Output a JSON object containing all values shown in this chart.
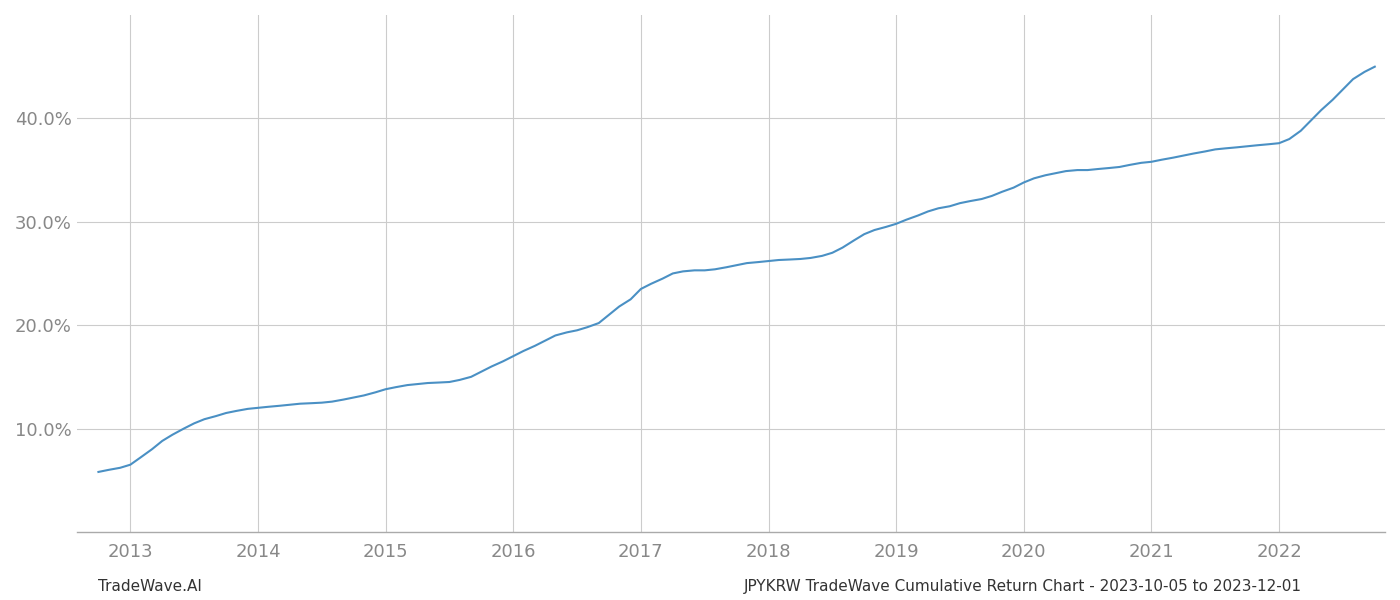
{
  "footer_left": "TradeWave.AI",
  "footer_right": "JPYKRW TradeWave Cumulative Return Chart - 2023-10-05 to 2023-12-01",
  "line_color": "#4a90c4",
  "background_color": "#ffffff",
  "grid_color": "#cccccc",
  "x_years": [
    2013,
    2014,
    2015,
    2016,
    2017,
    2018,
    2019,
    2020,
    2021,
    2022
  ],
  "x_data": [
    2012.75,
    2012.83,
    2012.92,
    2013.0,
    2013.08,
    2013.17,
    2013.25,
    2013.33,
    2013.42,
    2013.5,
    2013.58,
    2013.67,
    2013.75,
    2013.83,
    2013.92,
    2014.0,
    2014.08,
    2014.17,
    2014.25,
    2014.33,
    2014.42,
    2014.5,
    2014.58,
    2014.67,
    2014.75,
    2014.83,
    2014.92,
    2015.0,
    2015.08,
    2015.17,
    2015.25,
    2015.33,
    2015.42,
    2015.5,
    2015.58,
    2015.67,
    2015.75,
    2015.83,
    2015.92,
    2016.0,
    2016.08,
    2016.17,
    2016.25,
    2016.33,
    2016.42,
    2016.5,
    2016.58,
    2016.67,
    2016.75,
    2016.83,
    2016.92,
    2017.0,
    2017.08,
    2017.17,
    2017.25,
    2017.33,
    2017.42,
    2017.5,
    2017.58,
    2017.67,
    2017.75,
    2017.83,
    2017.92,
    2018.0,
    2018.08,
    2018.17,
    2018.25,
    2018.33,
    2018.42,
    2018.5,
    2018.58,
    2018.67,
    2018.75,
    2018.83,
    2018.92,
    2019.0,
    2019.08,
    2019.17,
    2019.25,
    2019.33,
    2019.42,
    2019.5,
    2019.58,
    2019.67,
    2019.75,
    2019.83,
    2019.92,
    2020.0,
    2020.08,
    2020.17,
    2020.25,
    2020.33,
    2020.42,
    2020.5,
    2020.58,
    2020.67,
    2020.75,
    2020.83,
    2020.92,
    2021.0,
    2021.08,
    2021.17,
    2021.25,
    2021.33,
    2021.42,
    2021.5,
    2021.58,
    2021.67,
    2021.75,
    2021.83,
    2021.92,
    2022.0,
    2022.08,
    2022.17,
    2022.25,
    2022.33,
    2022.42,
    2022.5,
    2022.58,
    2022.67,
    2022.75
  ],
  "y_data": [
    5.8,
    6.0,
    6.2,
    6.5,
    7.2,
    8.0,
    8.8,
    9.4,
    10.0,
    10.5,
    10.9,
    11.2,
    11.5,
    11.7,
    11.9,
    12.0,
    12.1,
    12.2,
    12.3,
    12.4,
    12.45,
    12.5,
    12.6,
    12.8,
    13.0,
    13.2,
    13.5,
    13.8,
    14.0,
    14.2,
    14.3,
    14.4,
    14.45,
    14.5,
    14.7,
    15.0,
    15.5,
    16.0,
    16.5,
    17.0,
    17.5,
    18.0,
    18.5,
    19.0,
    19.3,
    19.5,
    19.8,
    20.2,
    21.0,
    21.8,
    22.5,
    23.5,
    24.0,
    24.5,
    25.0,
    25.2,
    25.3,
    25.3,
    25.4,
    25.6,
    25.8,
    26.0,
    26.1,
    26.2,
    26.3,
    26.35,
    26.4,
    26.5,
    26.7,
    27.0,
    27.5,
    28.2,
    28.8,
    29.2,
    29.5,
    29.8,
    30.2,
    30.6,
    31.0,
    31.3,
    31.5,
    31.8,
    32.0,
    32.2,
    32.5,
    32.9,
    33.3,
    33.8,
    34.2,
    34.5,
    34.7,
    34.9,
    35.0,
    35.0,
    35.1,
    35.2,
    35.3,
    35.5,
    35.7,
    35.8,
    36.0,
    36.2,
    36.4,
    36.6,
    36.8,
    37.0,
    37.1,
    37.2,
    37.3,
    37.4,
    37.5,
    37.6,
    38.0,
    38.8,
    39.8,
    40.8,
    41.8,
    42.8,
    43.8,
    44.5,
    45.0
  ],
  "ylim": [
    0,
    50
  ],
  "xlim": [
    2012.58,
    2022.83
  ],
  "yticks": [
    10.0,
    20.0,
    30.0,
    40.0
  ],
  "ytick_labels": [
    "10.0%",
    "20.0%",
    "30.0%",
    "40.0%"
  ],
  "text_color": "#888888",
  "footer_fontsize": 11,
  "tick_fontsize": 13
}
